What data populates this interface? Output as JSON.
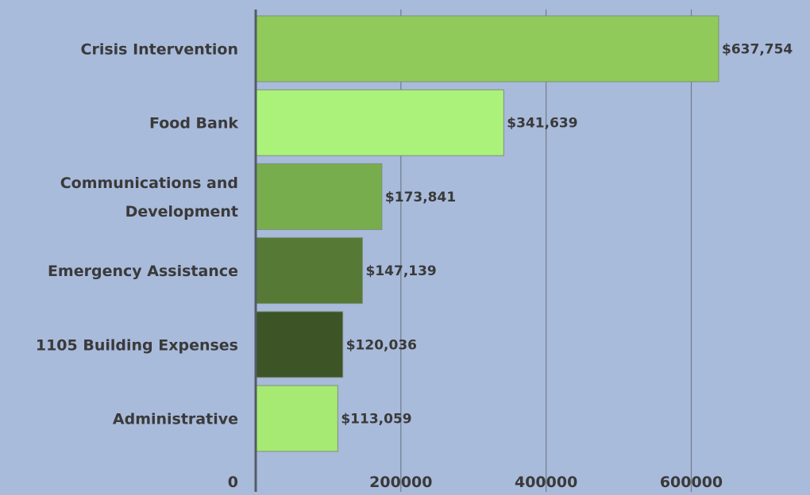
{
  "chart_data": {
    "type": "bar",
    "orientation": "horizontal",
    "categories": [
      [
        "Crisis Intervention"
      ],
      [
        "Food Bank"
      ],
      [
        "Communications and",
        "Development"
      ],
      [
        "Emergency Assistance"
      ],
      [
        "1105 Building Expenses"
      ],
      [
        "Administrative"
      ]
    ],
    "values": [
      637754,
      341639,
      173841,
      147139,
      120036,
      113059
    ],
    "value_labels": [
      "$637,754",
      "$341,639",
      "$173,841",
      "$147,139",
      "$120,036",
      "$113,059"
    ],
    "colors": [
      "#8fca5a",
      "#abf27a",
      "#78ad4e",
      "#567a36",
      "#3c5426",
      "#a6ea73"
    ],
    "x_ticks": [
      0,
      200000,
      400000,
      600000
    ],
    "x_tick_labels": [
      "0",
      "200000",
      "400000",
      "600000"
    ],
    "xlim": [
      0,
      700000
    ],
    "grid": true,
    "legend": "none",
    "title": "",
    "xlabel": "",
    "ylabel": ""
  }
}
